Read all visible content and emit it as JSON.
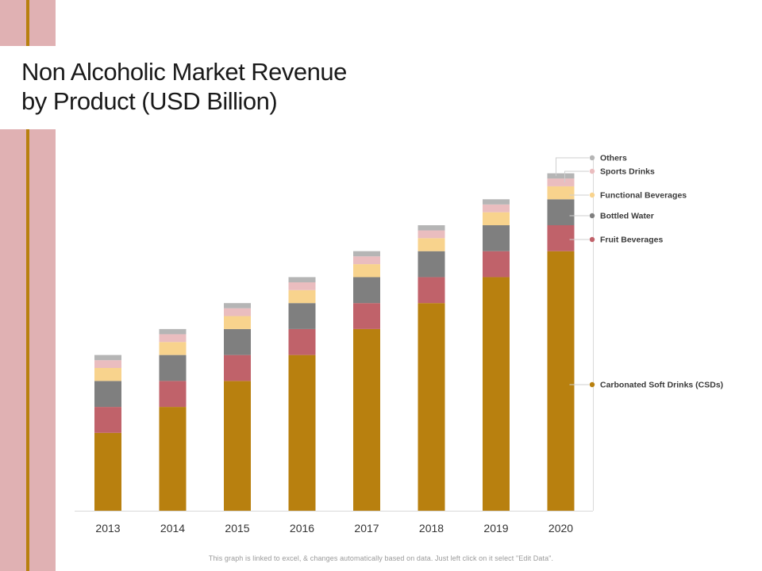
{
  "title_line1": "Non Alcoholic Market Revenue",
  "title_line2": "by Product (USD Billion)",
  "footnote": "This graph is linked to excel, & changes automatically based on data. Just left click on it select \"Edit Data\".",
  "colors": {
    "accent": "#b8800f",
    "side_band": "#e0b1b3"
  },
  "chart_data": {
    "type": "bar",
    "stacked": true,
    "title": "Non Alcoholic Market Revenue by Product (USD Billion)",
    "xlabel": "",
    "ylabel": "",
    "categories": [
      "2013",
      "2014",
      "2015",
      "2016",
      "2017",
      "2018",
      "2019",
      "2020"
    ],
    "ylim": [
      0,
      13.2
    ],
    "grid": false,
    "legend_position": "right",
    "series": [
      {
        "name": "Carbonated Soft Drinks (CSDs)",
        "color": "#b8800f",
        "values": [
          3.0,
          4.0,
          5.0,
          6.0,
          7.0,
          8.0,
          9.0,
          10.0
        ]
      },
      {
        "name": "Fruit Beverages",
        "color": "#c0626a",
        "values": [
          1,
          1,
          1,
          1,
          1,
          1,
          1,
          1
        ]
      },
      {
        "name": "Bottled Water",
        "color": "#7f7f7f",
        "values": [
          1,
          1,
          1,
          1,
          1,
          1,
          1,
          1
        ]
      },
      {
        "name": "Functional Beverages",
        "color": "#f8d38d",
        "values": [
          0.5,
          0.5,
          0.5,
          0.5,
          0.5,
          0.5,
          0.5,
          0.5
        ]
      },
      {
        "name": "Sports Drinks",
        "color": "#eabdbf",
        "values": [
          0.3,
          0.3,
          0.3,
          0.3,
          0.3,
          0.3,
          0.3,
          0.3
        ]
      },
      {
        "name": "Others",
        "color": "#b5b5b5",
        "values": [
          0.2,
          0.2,
          0.2,
          0.2,
          0.2,
          0.2,
          0.2,
          0.2
        ]
      }
    ]
  }
}
